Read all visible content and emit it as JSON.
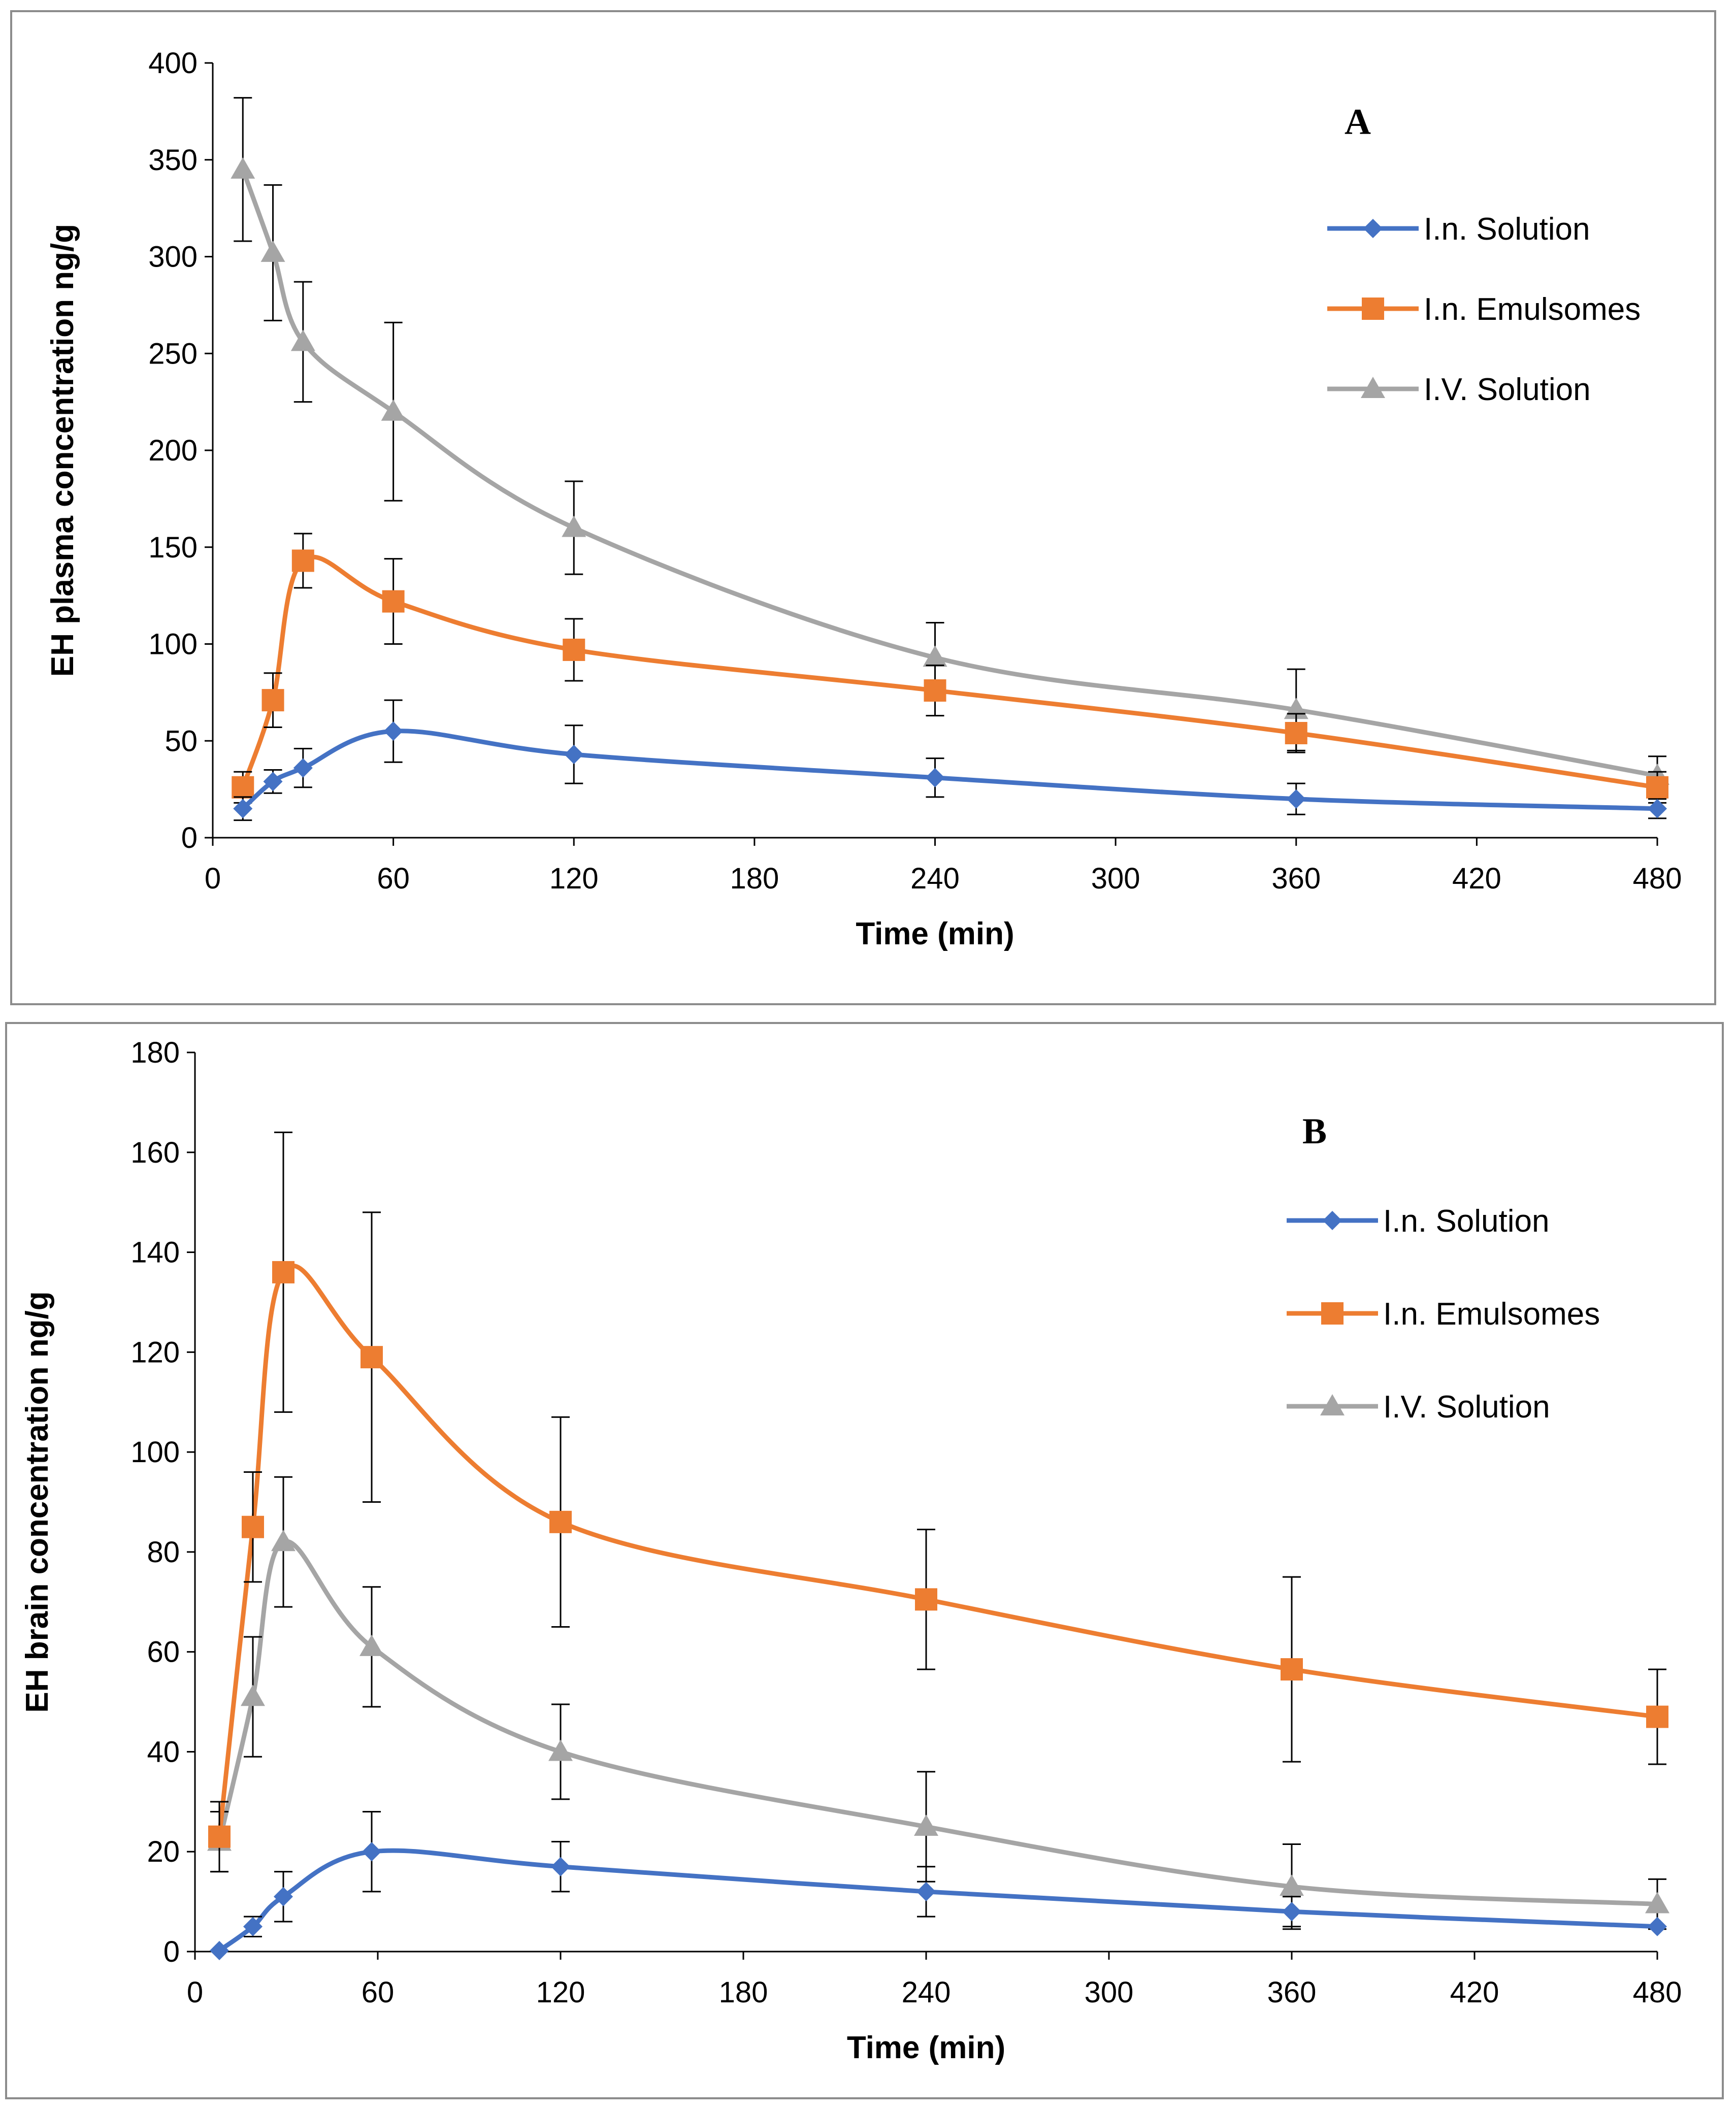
{
  "chart_data": [
    {
      "type": "line",
      "panel_label": "A",
      "xlabel": "Time (min)",
      "ylabel": "EH plasma concentration ng/g",
      "xlim": [
        0,
        480
      ],
      "ylim": [
        0,
        400
      ],
      "x_ticks": [
        "0",
        "60",
        "120",
        "180",
        "240",
        "300",
        "360",
        "420",
        "480"
      ],
      "y_ticks": [
        "0",
        "50",
        "100",
        "150",
        "200",
        "250",
        "300",
        "350",
        "400"
      ],
      "legend": [
        "I.n. Solution",
        "I.n. Emulsomes",
        "I.V. Solution"
      ],
      "x": [
        10,
        20,
        30,
        60,
        120,
        240,
        360,
        480
      ],
      "series": [
        {
          "name": "I.n. Solution",
          "marker": "diamond",
          "color": "#4472C4",
          "values": [
            15,
            29,
            36,
            55,
            43,
            31,
            20,
            15
          ],
          "errors": [
            6,
            6,
            10,
            16,
            15,
            10,
            8,
            5
          ]
        },
        {
          "name": "I.n. Emulsomes",
          "marker": "square",
          "color": "#ED7D31",
          "values": [
            26,
            71,
            143,
            122,
            97,
            76,
            54,
            26
          ],
          "errors": [
            8,
            14,
            14,
            22,
            16,
            13,
            10,
            8
          ]
        },
        {
          "name": "I.V. Solution",
          "marker": "triangle",
          "color": "#A5A5A5",
          "values": [
            345,
            302,
            256,
            220,
            160,
            93,
            66,
            32
          ],
          "errors": [
            37,
            35,
            31,
            46,
            24,
            18,
            21,
            10
          ]
        }
      ]
    },
    {
      "type": "line",
      "panel_label": "B",
      "xlabel": "Time (min)",
      "ylabel": "EH brain concentration ng/g",
      "xlim": [
        0,
        480
      ],
      "ylim": [
        0,
        180
      ],
      "x_ticks": [
        "0",
        "60",
        "120",
        "180",
        "240",
        "300",
        "360",
        "420",
        "480"
      ],
      "y_ticks": [
        "0",
        "20",
        "40",
        "60",
        "80",
        "100",
        "120",
        "140",
        "160",
        "180"
      ],
      "legend": [
        "I.n. Solution",
        "I.n. Emulsomes",
        "I.V. Solution"
      ],
      "x": [
        8,
        19,
        29,
        58,
        120,
        240,
        360,
        480
      ],
      "series": [
        {
          "name": "I.n. Solution",
          "marker": "diamond",
          "color": "#4472C4",
          "values": [
            0.2,
            5,
            11,
            20,
            17,
            12,
            8,
            5
          ],
          "errors": [
            0,
            2,
            5,
            8,
            5,
            5,
            3,
            0
          ]
        },
        {
          "name": "I.n. Emulsomes",
          "marker": "square",
          "color": "#ED7D31",
          "values": [
            23,
            85,
            136,
            119,
            86,
            70.5,
            56.5,
            47
          ],
          "errors": [
            7,
            11,
            28,
            29,
            21,
            14,
            18.5,
            9.5
          ]
        },
        {
          "name": "I.V. Solution",
          "marker": "triangle",
          "color": "#A5A5A5",
          "values": [
            22,
            51,
            82,
            61,
            40,
            25,
            13,
            9.5
          ],
          "errors": [
            6,
            12,
            13,
            12,
            9.5,
            11,
            8.5,
            5
          ]
        }
      ]
    }
  ]
}
